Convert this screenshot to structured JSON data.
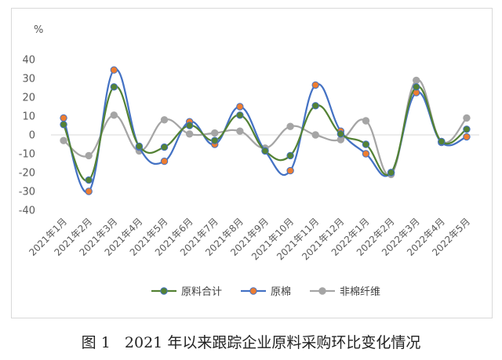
{
  "caption": {
    "figure_number": "图 1",
    "title": "2021 年以来跟踪企业原料采购环比变化情况"
  },
  "chart_data": {
    "type": "line",
    "unit_label": "%",
    "ylim": [
      -40,
      40
    ],
    "yticks": [
      40,
      30,
      20,
      10,
      0,
      -10,
      -20,
      -30,
      -40
    ],
    "grid": false,
    "legend_position": "bottom",
    "categories": [
      "2021年1月",
      "2021年2月",
      "2021年3月",
      "2021年4月",
      "2021年5月",
      "2021年6月",
      "2021年7月",
      "2021年8月",
      "2021年9月",
      "2021年10月",
      "2021年11月",
      "2021年12月",
      "2022年1月",
      "2022年2月",
      "2022年3月",
      "2022年4月",
      "2022年5月"
    ],
    "series": [
      {
        "name": "原料合计",
        "color": "#548235",
        "marker_fill": "#548235",
        "marker_stroke": "#4472c4",
        "values": [
          5.5,
          -24,
          25.5,
          -6,
          -6.5,
          5,
          -3,
          10.5,
          -8.5,
          -11,
          15.5,
          0.5,
          -5,
          -20,
          25.5,
          -3.5,
          3
        ]
      },
      {
        "name": "原棉",
        "color": "#4472c4",
        "marker_fill": "#ed7d31",
        "marker_stroke": "#4472c4",
        "values": [
          9,
          -30,
          34.5,
          -6.5,
          -14,
          7,
          -5,
          15,
          -8.5,
          -19,
          26.5,
          2,
          -10,
          -20,
          22.5,
          -4,
          -1
        ]
      },
      {
        "name": "非棉纤维",
        "color": "#a5a5a5",
        "marker_fill": "#a5a5a5",
        "marker_stroke": "#a5a5a5",
        "values": [
          -3,
          -11,
          10.5,
          -8.5,
          8,
          0.5,
          1,
          2,
          -7,
          4.5,
          0,
          -2.5,
          7.5,
          -21,
          29,
          -3.5,
          9
        ]
      }
    ]
  }
}
